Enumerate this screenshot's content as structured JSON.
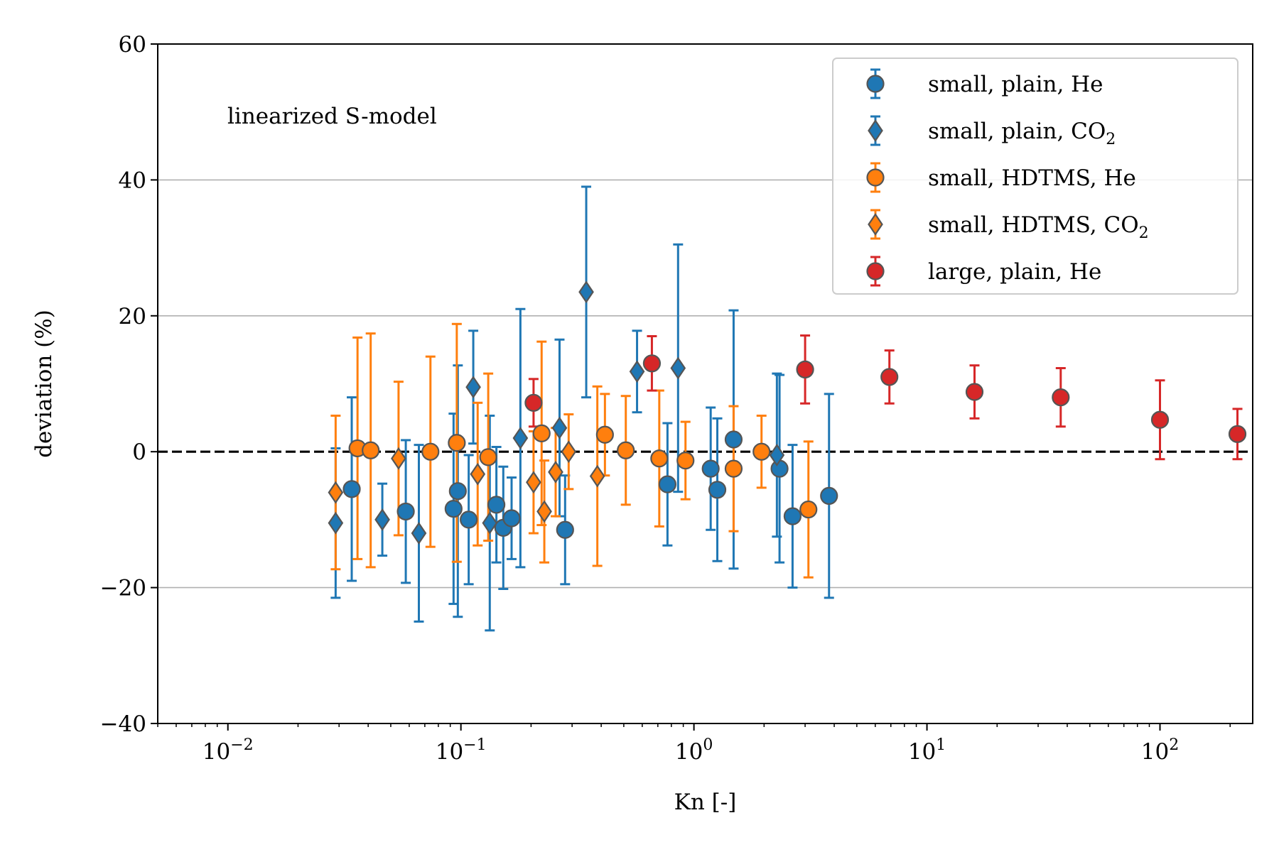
{
  "chart_data": {
    "type": "scatter",
    "title": "",
    "annotation": "linearized S-model",
    "xlabel": "Kn [-]",
    "ylabel": "deviation (%)",
    "xscale": "log",
    "xlim": [
      0.005,
      250
    ],
    "ylim": [
      -40,
      60
    ],
    "yticks": [
      -40,
      -20,
      0,
      20,
      40,
      60
    ],
    "ytick_labels": [
      "−40",
      "−20",
      "0",
      "20",
      "40",
      "60"
    ],
    "xticks": [
      {
        "value": 0.01,
        "base": "10",
        "exp": "−2"
      },
      {
        "value": 0.1,
        "base": "10",
        "exp": "−1"
      },
      {
        "value": 1,
        "base": "10",
        "exp": "0"
      },
      {
        "value": 10,
        "base": "10",
        "exp": "1"
      },
      {
        "value": 100,
        "base": "10",
        "exp": "2"
      }
    ],
    "grid": "horizontal",
    "reference_line": 0,
    "legend_position": "top-right",
    "series": [
      {
        "name": "small, plain, He",
        "label_main": "small, plain, He",
        "label_sub": "",
        "color": "#1f77b4",
        "marker": "circle",
        "points": [
          {
            "x": 0.034,
            "y": -5.5,
            "err": 13.5
          },
          {
            "x": 0.058,
            "y": -8.8,
            "err": 10.5
          },
          {
            "x": 0.093,
            "y": -8.4,
            "err": 14
          },
          {
            "x": 0.097,
            "y": -5.8,
            "err": 18.5
          },
          {
            "x": 0.108,
            "y": -10.0,
            "err": 9.5
          },
          {
            "x": 0.142,
            "y": -7.8,
            "err": 8.5
          },
          {
            "x": 0.152,
            "y": -11.2,
            "err": 9
          },
          {
            "x": 0.165,
            "y": -9.8,
            "err": 6
          },
          {
            "x": 0.28,
            "y": -11.5,
            "err": 8
          },
          {
            "x": 0.77,
            "y": -4.8,
            "err": 9
          },
          {
            "x": 1.18,
            "y": -2.5,
            "err": 9
          },
          {
            "x": 1.26,
            "y": -5.6,
            "err": 10.5
          },
          {
            "x": 1.48,
            "y": 1.8,
            "err": 19
          },
          {
            "x": 2.33,
            "y": -2.5,
            "err": 13.8
          },
          {
            "x": 2.65,
            "y": -9.5,
            "err": 10.5
          },
          {
            "x": 3.8,
            "y": -6.5,
            "err": 15
          }
        ]
      },
      {
        "name": "small, plain, CO2",
        "label_main": "small, plain, CO",
        "label_sub": "2",
        "color": "#1f77b4",
        "marker": "diamond",
        "points": [
          {
            "x": 0.029,
            "y": -10.5,
            "err": 11
          },
          {
            "x": 0.046,
            "y": -10.0,
            "err": 5.3
          },
          {
            "x": 0.066,
            "y": -12.0,
            "err": 13
          },
          {
            "x": 0.113,
            "y": 9.5,
            "err": 8.3
          },
          {
            "x": 0.133,
            "y": -10.5,
            "err": 15.8
          },
          {
            "x": 0.18,
            "y": 2.0,
            "err": 19
          },
          {
            "x": 0.265,
            "y": 3.5,
            "err": 13
          },
          {
            "x": 0.345,
            "y": 23.5,
            "err": 15.5
          },
          {
            "x": 0.57,
            "y": 11.8,
            "err": 6
          },
          {
            "x": 0.855,
            "y": 12.3,
            "err": 18.2
          },
          {
            "x": 2.27,
            "y": -0.5,
            "err": 12
          }
        ]
      },
      {
        "name": "small, HDTMS, He",
        "label_main": "small, HDTMS, He",
        "label_sub": "",
        "color": "#ff7f0e",
        "marker": "circle",
        "points": [
          {
            "x": 0.036,
            "y": 0.5,
            "err": 16.3
          },
          {
            "x": 0.041,
            "y": 0.2,
            "err": 17.2
          },
          {
            "x": 0.074,
            "y": 0.0,
            "err": 14
          },
          {
            "x": 0.096,
            "y": 1.3,
            "err": 17.5
          },
          {
            "x": 0.131,
            "y": -0.8,
            "err": 12.3
          },
          {
            "x": 0.222,
            "y": 2.7,
            "err": 13.5
          },
          {
            "x": 0.415,
            "y": 2.5,
            "err": 6
          },
          {
            "x": 0.51,
            "y": 0.2,
            "err": 8
          },
          {
            "x": 0.71,
            "y": -1.0,
            "err": 10
          },
          {
            "x": 0.92,
            "y": -1.3,
            "err": 5.7
          },
          {
            "x": 1.48,
            "y": -2.5,
            "err": 9.2
          },
          {
            "x": 1.95,
            "y": 0.0,
            "err": 5.3
          },
          {
            "x": 3.1,
            "y": -8.5,
            "err": 10
          }
        ]
      },
      {
        "name": "small, HDTMS, CO2",
        "label_main": "small, HDTMS, CO",
        "label_sub": "2",
        "color": "#ff7f0e",
        "marker": "diamond",
        "points": [
          {
            "x": 0.029,
            "y": -6.0,
            "err": 11.3
          },
          {
            "x": 0.054,
            "y": -1.0,
            "err": 11.3
          },
          {
            "x": 0.118,
            "y": -3.3,
            "err": 10.5
          },
          {
            "x": 0.205,
            "y": -4.5,
            "err": 7.5
          },
          {
            "x": 0.228,
            "y": -8.8,
            "err": 7.5
          },
          {
            "x": 0.255,
            "y": -3.0,
            "err": 6.5
          },
          {
            "x": 0.29,
            "y": 0.0,
            "err": 5.5
          },
          {
            "x": 0.385,
            "y": -3.6,
            "err": 13.2
          }
        ]
      },
      {
        "name": "large, plain, He",
        "label_main": "large, plain, He",
        "label_sub": "",
        "color": "#d62728",
        "marker": "circle",
        "points": [
          {
            "x": 0.205,
            "y": 7.2,
            "err": 3.5
          },
          {
            "x": 0.66,
            "y": 13.0,
            "err": 4
          },
          {
            "x": 3.0,
            "y": 12.1,
            "err": 5
          },
          {
            "x": 6.9,
            "y": 11.0,
            "err": 3.9
          },
          {
            "x": 16.0,
            "y": 8.8,
            "err": 3.9
          },
          {
            "x": 37.5,
            "y": 8.0,
            "err": 4.3
          },
          {
            "x": 100.0,
            "y": 4.7,
            "err": 5.8
          },
          {
            "x": 215.0,
            "y": 2.6,
            "err": 3.7
          }
        ]
      }
    ]
  }
}
